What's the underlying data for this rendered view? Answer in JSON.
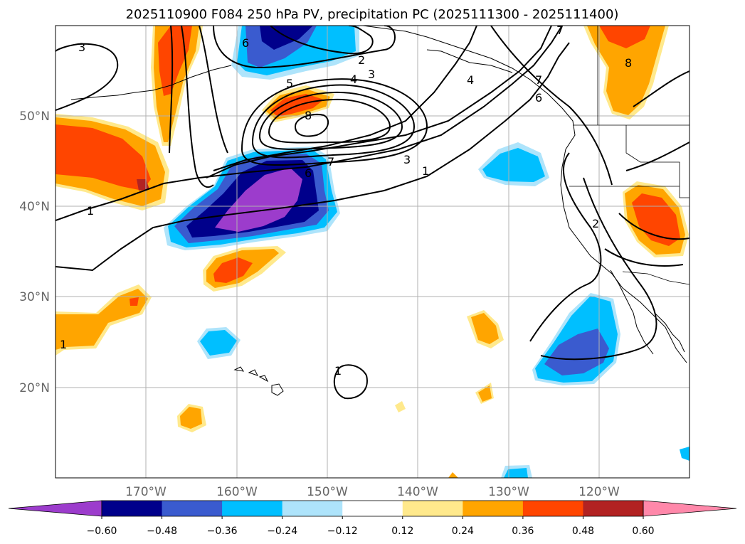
{
  "title": "2025110900 F084 250 hPa PV, precipitation PC (2025111300 - 2025111400)",
  "map": {
    "lon_range": [
      -180,
      -110
    ],
    "lat_range": [
      10,
      60
    ],
    "lat_ticks": [
      {
        "value": 50,
        "label": "50°N"
      },
      {
        "value": 40,
        "label": "40°N"
      },
      {
        "value": 30,
        "label": "30°N"
      },
      {
        "value": 20,
        "label": "20°N"
      }
    ],
    "lon_ticks": [
      {
        "value": -170,
        "label": "170°W"
      },
      {
        "value": -160,
        "label": "160°W"
      },
      {
        "value": -150,
        "label": "150°W"
      },
      {
        "value": -140,
        "label": "140°W"
      },
      {
        "value": -130,
        "label": "130°W"
      },
      {
        "value": -120,
        "label": "120°W"
      }
    ],
    "contour_labels": [
      "3",
      "6",
      "2",
      "3",
      "4",
      "5",
      "8",
      "7",
      "6",
      "3",
      "1",
      "1",
      "4",
      "7",
      "6",
      "7",
      "8",
      "2",
      "1",
      "1"
    ]
  },
  "colorbar": {
    "colors": [
      "#9c3ccc",
      "#00008b",
      "#3a5bcf",
      "#00bfff",
      "#aee4fb",
      "#ffffff",
      "#ffe98c",
      "#ffa500",
      "#ff4500",
      "#b22222",
      "#ff88aa"
    ],
    "ticks": [
      "−0.60",
      "−0.48",
      "−0.36",
      "−0.24",
      "−0.12",
      "0.12",
      "0.24",
      "0.36",
      "0.48",
      "0.60"
    ]
  }
}
